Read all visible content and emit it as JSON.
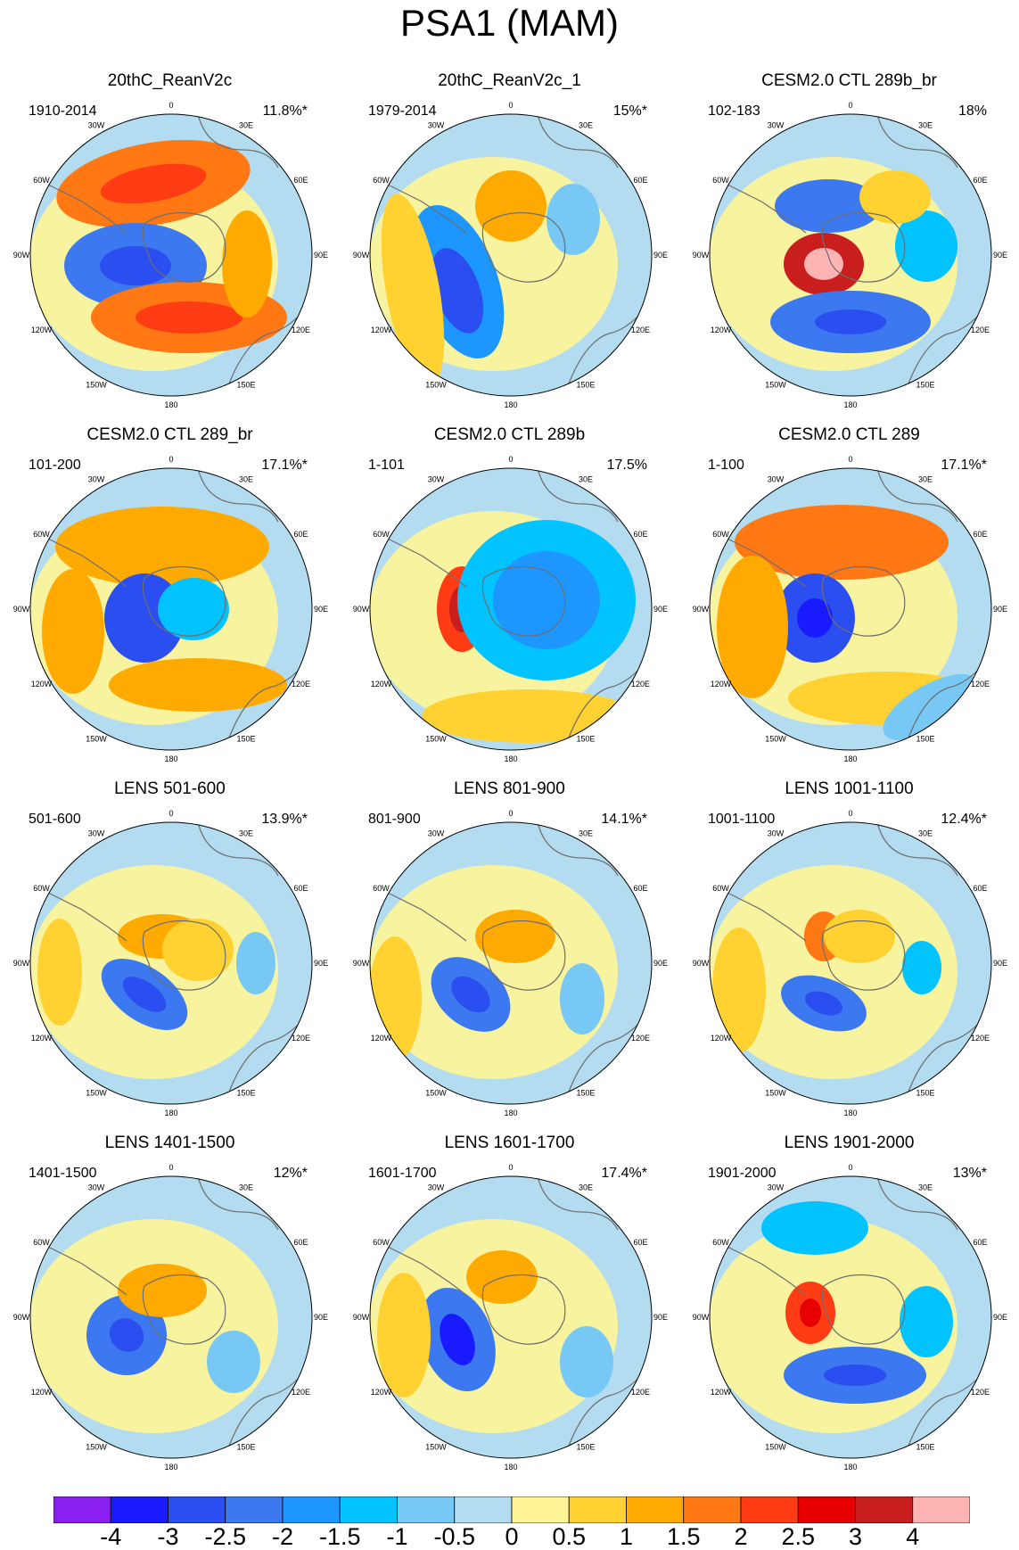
{
  "title": "PSA1 (MAM)",
  "longitude_labels": [
    "0",
    "30E",
    "60E",
    "90E",
    "120E",
    "150E",
    "180",
    "150W",
    "120W",
    "90W",
    "60W",
    "30W"
  ],
  "panels": [
    {
      "title": "20thC_ReanV2c",
      "period": "1910-2014",
      "variance": "11.8%*"
    },
    {
      "title": "20thC_ReanV2c_1",
      "period": "1979-2014",
      "variance": "15%*"
    },
    {
      "title": "CESM2.0 CTL 289b_br",
      "period": "102-183",
      "variance": "18%"
    },
    {
      "title": "CESM2.0 CTL 289_br",
      "period": "101-200",
      "variance": "17.1%*"
    },
    {
      "title": "CESM2.0 CTL 289b",
      "period": "1-101",
      "variance": "17.5%"
    },
    {
      "title": "CESM2.0 CTL 289",
      "period": "1-100",
      "variance": "17.1%*"
    },
    {
      "title": "LENS 501-600",
      "period": "501-600",
      "variance": "13.9%*"
    },
    {
      "title": "LENS 801-900",
      "period": "801-900",
      "variance": "14.1%*"
    },
    {
      "title": "LENS 1001-1100",
      "period": "1001-1100",
      "variance": "12.4%*"
    },
    {
      "title": "LENS 1401-1500",
      "period": "1401-1500",
      "variance": "12%*"
    },
    {
      "title": "LENS 1601-1700",
      "period": "1601-1700",
      "variance": "17.4%*"
    },
    {
      "title": "LENS 1901-2000",
      "period": "1901-2000",
      "variance": "13%*"
    }
  ],
  "colorbar": {
    "labels": [
      "-4",
      "-3",
      "-2.5",
      "-2",
      "-1.5",
      "-1",
      "-0.5",
      "0",
      "0.5",
      "1",
      "1.5",
      "2",
      "2.5",
      "3",
      "4"
    ],
    "colors": [
      "#8a1ff0",
      "#1a1aff",
      "#2a4ef0",
      "#3c78f0",
      "#1e96ff",
      "#00c3ff",
      "#78c8f5",
      "#b4dcf0",
      "#fff596",
      "#ffd232",
      "#ffaa00",
      "#ff7814",
      "#ff3c14",
      "#e60000",
      "#c81e1e",
      "#ffb4b4"
    ]
  }
}
